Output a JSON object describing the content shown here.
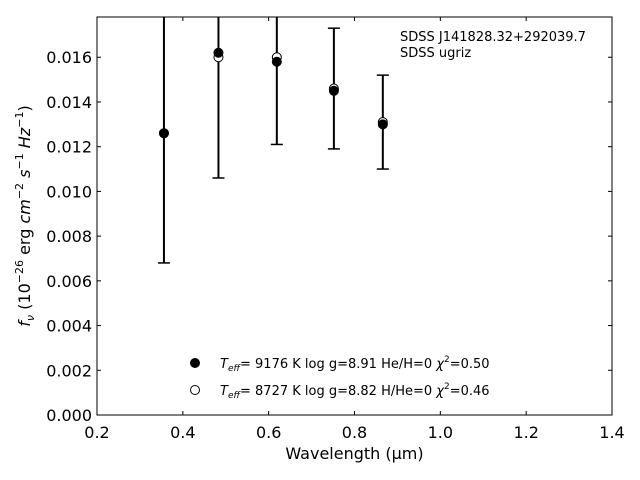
{
  "chart_data": {
    "type": "scatter",
    "title": "",
    "xlabel": "Wavelength (μm)",
    "ylabel_parts": [
      "f",
      "ν",
      " (10",
      "−26",
      " erg ",
      "cm",
      "−2",
      " ",
      "s",
      "−1",
      " ",
      "Hz",
      "−1",
      ")"
    ],
    "xlim": [
      0.2,
      1.4
    ],
    "ylim": [
      0.0,
      0.0178
    ],
    "xticks": [
      0.2,
      0.4,
      0.6,
      0.8,
      1.0,
      1.2,
      1.4
    ],
    "xtick_labels": [
      "0.2",
      "0.4",
      "0.6",
      "0.8",
      "1.0",
      "1.2",
      "1.4"
    ],
    "yticks": [
      0.0,
      0.002,
      0.004,
      0.006,
      0.008,
      0.01,
      0.012,
      0.014,
      0.016
    ],
    "ytick_labels": [
      "0.000",
      "0.002",
      "0.004",
      "0.006",
      "0.008",
      "0.010",
      "0.012",
      "0.014",
      "0.016"
    ],
    "annotations": [
      "SDSS J141828.32+292039.7",
      "SDSS ugriz"
    ],
    "x": [
      0.356,
      0.483,
      0.619,
      0.752,
      0.866
    ],
    "errorbars": [
      {
        "x": 0.356,
        "y": 0.0126,
        "err": 0.0058
      },
      {
        "x": 0.483,
        "y": 0.0162,
        "err": 0.0056
      },
      {
        "x": 0.619,
        "y": 0.0159,
        "err": 0.0038
      },
      {
        "x": 0.752,
        "y": 0.0146,
        "err": 0.0027
      },
      {
        "x": 0.866,
        "y": 0.0131,
        "err": 0.0021
      }
    ],
    "series": [
      {
        "label_parts": [
          "T",
          "eff",
          "=  9176 K  log g=8.91  He/H=0  ",
          "χ",
          "2",
          "=0.50"
        ],
        "marker": "filled",
        "values": [
          0.0126,
          0.0162,
          0.0158,
          0.0145,
          0.013
        ]
      },
      {
        "label_parts": [
          "T",
          "eff",
          "=  8727 K  log g=8.82  H/He=0  ",
          "χ",
          "2",
          "=0.46"
        ],
        "marker": "open",
        "values": [
          0.0126,
          0.016,
          0.016,
          0.0146,
          0.0131
        ]
      }
    ],
    "legend_position": "lower-center",
    "grid": false
  }
}
